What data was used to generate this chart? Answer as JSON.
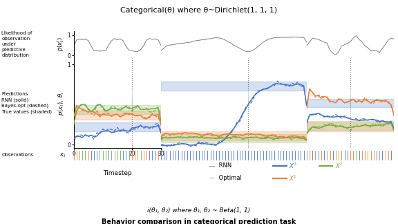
{
  "title_top": "Categorical(θ) where θ~Dirichlet(1, 1, 1)",
  "title_bottom1": "i(θ₁, θ₂) where θ₁, θ₂ ~ Beta(1, 1)",
  "title_bottom2": "Behavior comparison in categorical prediction task",
  "colors": {
    "blue": "#4472c4",
    "orange": "#ed7d31",
    "green": "#70ad47",
    "gray": "#7f7f7f"
  },
  "band_alpha": 0.22,
  "lw_rnn": 1.1,
  "lw_opt": 0.9
}
